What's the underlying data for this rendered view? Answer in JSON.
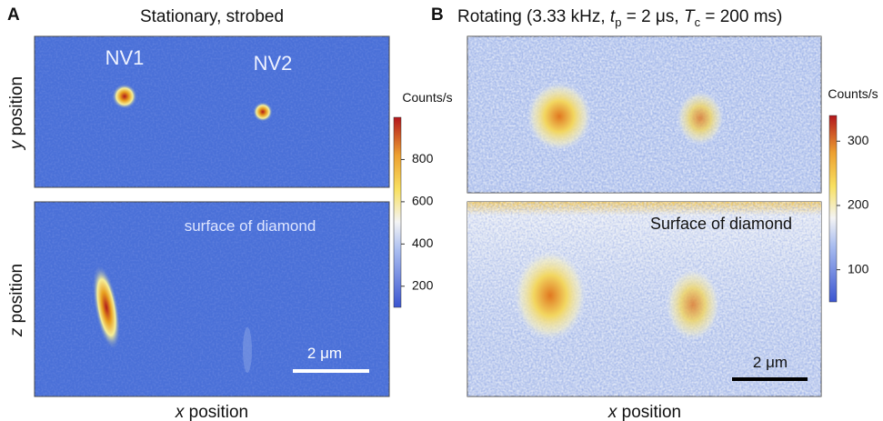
{
  "panels": [
    {
      "letter": "A",
      "title_parts": [
        "Stationary, strobed"
      ],
      "labels": {
        "nv1": "NV1",
        "nv2": "NV2",
        "surface": "surface of diamond",
        "scale": "2 μm"
      },
      "y_label": [
        "y",
        " position"
      ],
      "z_label": [
        "z",
        " position"
      ],
      "x_label": [
        "x",
        " position"
      ],
      "colorbar": {
        "label": "Counts/s",
        "lim": [
          100,
          1000
        ],
        "ticks": [
          200,
          400,
          600,
          800
        ]
      }
    },
    {
      "letter": "B",
      "title_parts": [
        "Rotating (3.33 kHz, ",
        "t",
        "p",
        " = 2 μs, ",
        "T",
        "c",
        " = 200 ms)"
      ],
      "labels": {
        "surface": "Surface of diamond",
        "scale": "2 μm"
      },
      "x_label": [
        "x",
        " position"
      ],
      "colorbar": {
        "label": "Counts/s",
        "lim": [
          50,
          340
        ],
        "ticks": [
          100,
          200,
          300
        ]
      }
    }
  ]
}
